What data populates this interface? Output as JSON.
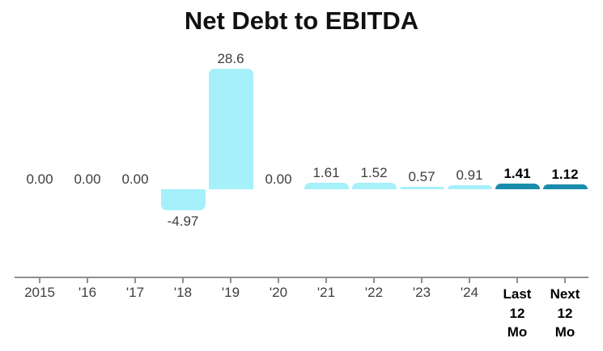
{
  "chart_data": {
    "type": "bar",
    "title": "Net Debt to EBITDA",
    "categories": [
      "2015",
      "'16",
      "'17",
      "'18",
      "'19",
      "'20",
      "'21",
      "'22",
      "'23",
      "'24",
      "Last 12 Mo",
      "Next 12 Mo"
    ],
    "tick_label_lines": [
      [
        "2015"
      ],
      [
        "'16"
      ],
      [
        "'17"
      ],
      [
        "'18"
      ],
      [
        "'19"
      ],
      [
        "'20"
      ],
      [
        "'21"
      ],
      [
        "'22"
      ],
      [
        "'23"
      ],
      [
        "'24"
      ],
      [
        "Last",
        "12",
        "Mo"
      ],
      [
        "Next",
        "12",
        "Mo"
      ]
    ],
    "values": [
      0.0,
      0.0,
      0.0,
      -4.97,
      28.6,
      0.0,
      1.61,
      1.52,
      0.57,
      0.91,
      1.41,
      1.12
    ],
    "value_labels": [
      "0.00",
      "0.00",
      "0.00",
      "-4.97",
      "28.6",
      "0.00",
      "1.61",
      "1.52",
      "0.57",
      "0.91",
      "1.41",
      "1.12"
    ],
    "emphasized": [
      false,
      false,
      false,
      false,
      false,
      false,
      false,
      false,
      false,
      false,
      true,
      true
    ],
    "xlabel": "",
    "ylabel": "",
    "ylim": [
      -5.5,
      29
    ],
    "grid": false,
    "y_axis_visible": false,
    "legend": "none",
    "colors": {
      "bar": "#a6f0fa",
      "bar_emphasis": "#1a8cab",
      "value_label": "#3d3d3d",
      "value_label_emphasis": "#000000",
      "tick_label": "#404040",
      "tick_label_emphasis": "#000000",
      "axis": "#909090",
      "title": "#111111"
    }
  }
}
